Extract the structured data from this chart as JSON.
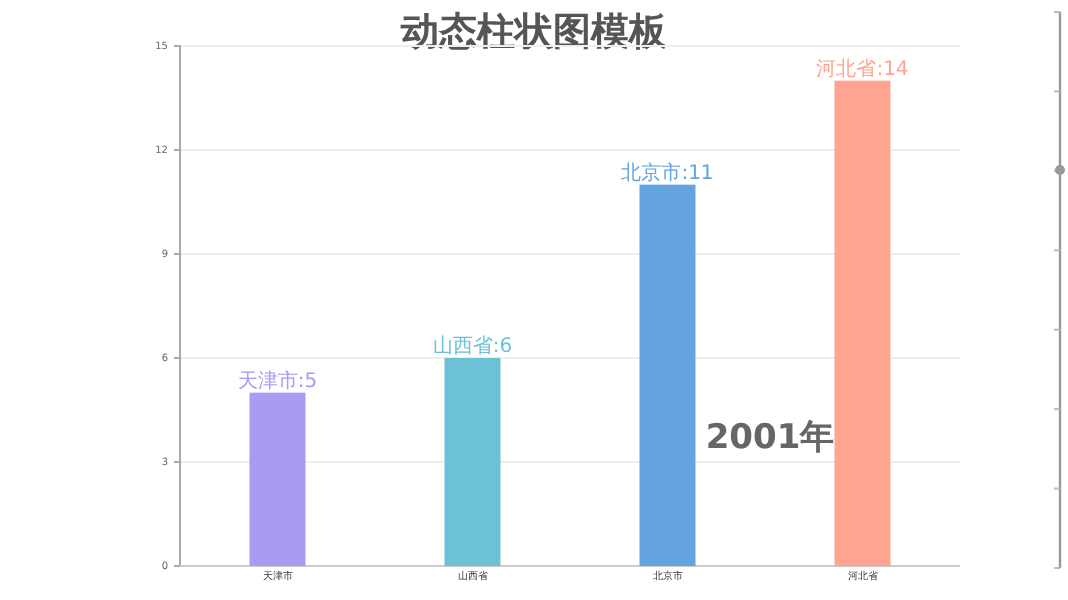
{
  "chart_data": {
    "type": "bar",
    "title": "动态柱状图模板",
    "categories": [
      "天津市",
      "山西省",
      "北京市",
      "河北省"
    ],
    "values": [
      5,
      6,
      11,
      14
    ],
    "colors": [
      "#a99af2",
      "#6cc2d4",
      "#63a4e0",
      "#fea490"
    ],
    "value_labels": [
      "天津市:5",
      "山西省:6",
      "北京市:11",
      "河北省:14"
    ],
    "ylim": [
      0,
      15
    ],
    "yticks": [
      0,
      3,
      6,
      9,
      12,
      15
    ],
    "grid": "y",
    "annotations": [
      "2001年"
    ]
  }
}
